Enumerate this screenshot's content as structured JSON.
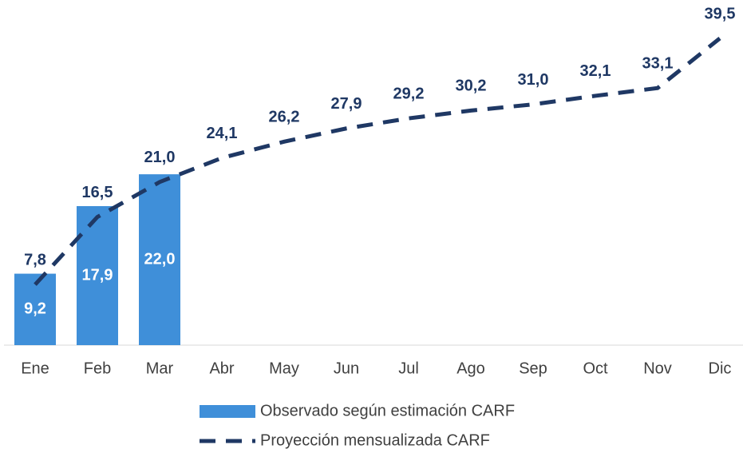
{
  "chart_data": {
    "type": "combo",
    "categories": [
      "Ene",
      "Feb",
      "Mar",
      "Abr",
      "May",
      "Jun",
      "Jul",
      "Ago",
      "Sep",
      "Oct",
      "Nov",
      "Dic"
    ],
    "series": [
      {
        "name": "Observado según estimación CARF",
        "type": "bar",
        "color": "#3f8fd9",
        "values": [
          9.2,
          17.9,
          22.0,
          null,
          null,
          null,
          null,
          null,
          null,
          null,
          null,
          null
        ],
        "value_labels": [
          "9,2",
          "17,9",
          "22,0",
          null,
          null,
          null,
          null,
          null,
          null,
          null,
          null,
          null
        ]
      },
      {
        "name": "Proyección mensualizada CARF",
        "type": "line",
        "color": "#1f3864",
        "values": [
          7.8,
          16.5,
          21.0,
          24.1,
          26.2,
          27.9,
          29.2,
          30.2,
          31.0,
          32.1,
          33.1,
          39.5
        ],
        "value_labels": [
          "7,8",
          "16,5",
          "21,0",
          "24,1",
          "26,2",
          "27,9",
          "29,2",
          "30,2",
          "31,0",
          "32,1",
          "33,1",
          "39,5"
        ]
      }
    ],
    "grid": false
  }
}
